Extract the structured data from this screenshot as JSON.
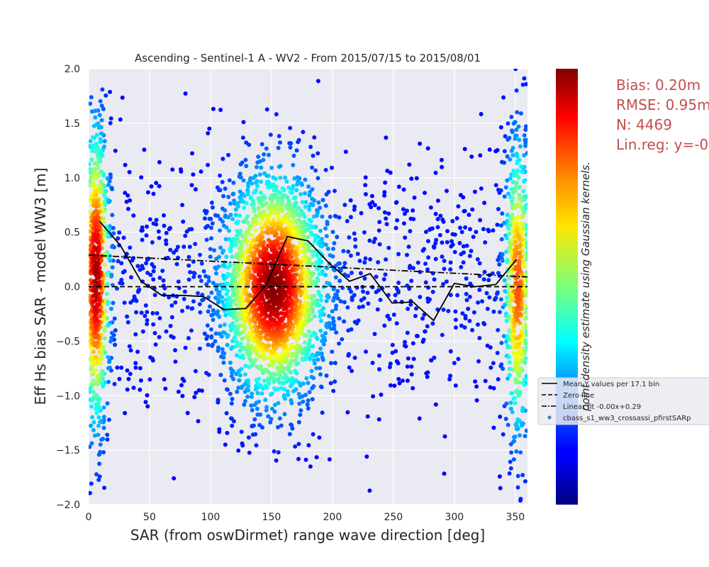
{
  "chart_data": {
    "type": "scatter",
    "title": "Ascending - Sentinel-1 A - WV2 - From 2015/07/15 to 2015/08/01",
    "xlabel": "SAR (from oswDirmet) range wave direction [deg]",
    "ylabel": "Eff Hs bias SAR - model WW3 [m]",
    "xlim": [
      0,
      360
    ],
    "ylim": [
      -2.0,
      2.0
    ],
    "xticks": [
      0,
      50,
      100,
      150,
      200,
      250,
      300,
      350
    ],
    "yticks": [
      -2.0,
      -1.5,
      -1.0,
      -0.5,
      0.0,
      0.5,
      1.0,
      1.5,
      2.0
    ],
    "grid": true,
    "colorbar": {
      "colormap": "jet",
      "label": "point density estimate using Gaussian kernels."
    },
    "series": [
      {
        "name": "Mean Y values per 17.1 bin",
        "style": "solid",
        "color": "#000000",
        "x": [
          9,
          26,
          43,
          60,
          77,
          94,
          111,
          129,
          146,
          163,
          180,
          197,
          214,
          231,
          249,
          266,
          283,
          300,
          317,
          334,
          351
        ],
        "y": [
          0.6,
          0.38,
          0.05,
          -0.08,
          -0.08,
          -0.09,
          -0.21,
          -0.2,
          0.02,
          0.46,
          0.42,
          0.22,
          0.05,
          0.12,
          -0.15,
          -0.14,
          -0.31,
          0.03,
          0.0,
          0.02,
          0.25
        ]
      },
      {
        "name": "Zero line",
        "style": "dashed",
        "color": "#000000",
        "x": [
          0,
          360
        ],
        "y": [
          0.0,
          0.0
        ]
      },
      {
        "name": "Linear fit -0.00x+0.29",
        "style": "dashdot",
        "color": "#000000",
        "x": [
          0,
          360
        ],
        "y": [
          0.29,
          0.09
        ]
      },
      {
        "name": "cbass_s1_ww3_crossassi_pfirstSARp",
        "style": "points",
        "color": "#4c72b0",
        "n": 4469,
        "clusters": [
          {
            "x_center": 152,
            "x_spread": 22,
            "y_center": 0.0,
            "y_spread": 0.55,
            "share": 0.48
          },
          {
            "x_center": 6,
            "x_spread": 6,
            "y_center": 0.1,
            "y_spread": 0.75,
            "share": 0.17
          },
          {
            "x_center": 352,
            "x_spread": 6,
            "y_center": 0.0,
            "y_spread": 0.75,
            "share": 0.13
          },
          {
            "x_center": 180,
            "x_spread": 180,
            "y_center": 0.0,
            "y_spread": 0.6,
            "share": 0.22
          }
        ]
      }
    ]
  },
  "stats": {
    "bias": "Bias: 0.20m",
    "rmse": "RMSE: 0.95m",
    "n": "N: 4469",
    "linreg": "Lin.reg: y=-0"
  },
  "legend": {
    "entries": [
      {
        "label": "Mean Y values per 17.1 bin",
        "style": "solid"
      },
      {
        "label": "Zero line",
        "style": "dashed"
      },
      {
        "label": "Linear fit -0.00x+0.29",
        "style": "dashdot"
      },
      {
        "label": "cbass_s1_ww3_crossassi_pfirstSARp",
        "style": "points"
      }
    ]
  }
}
